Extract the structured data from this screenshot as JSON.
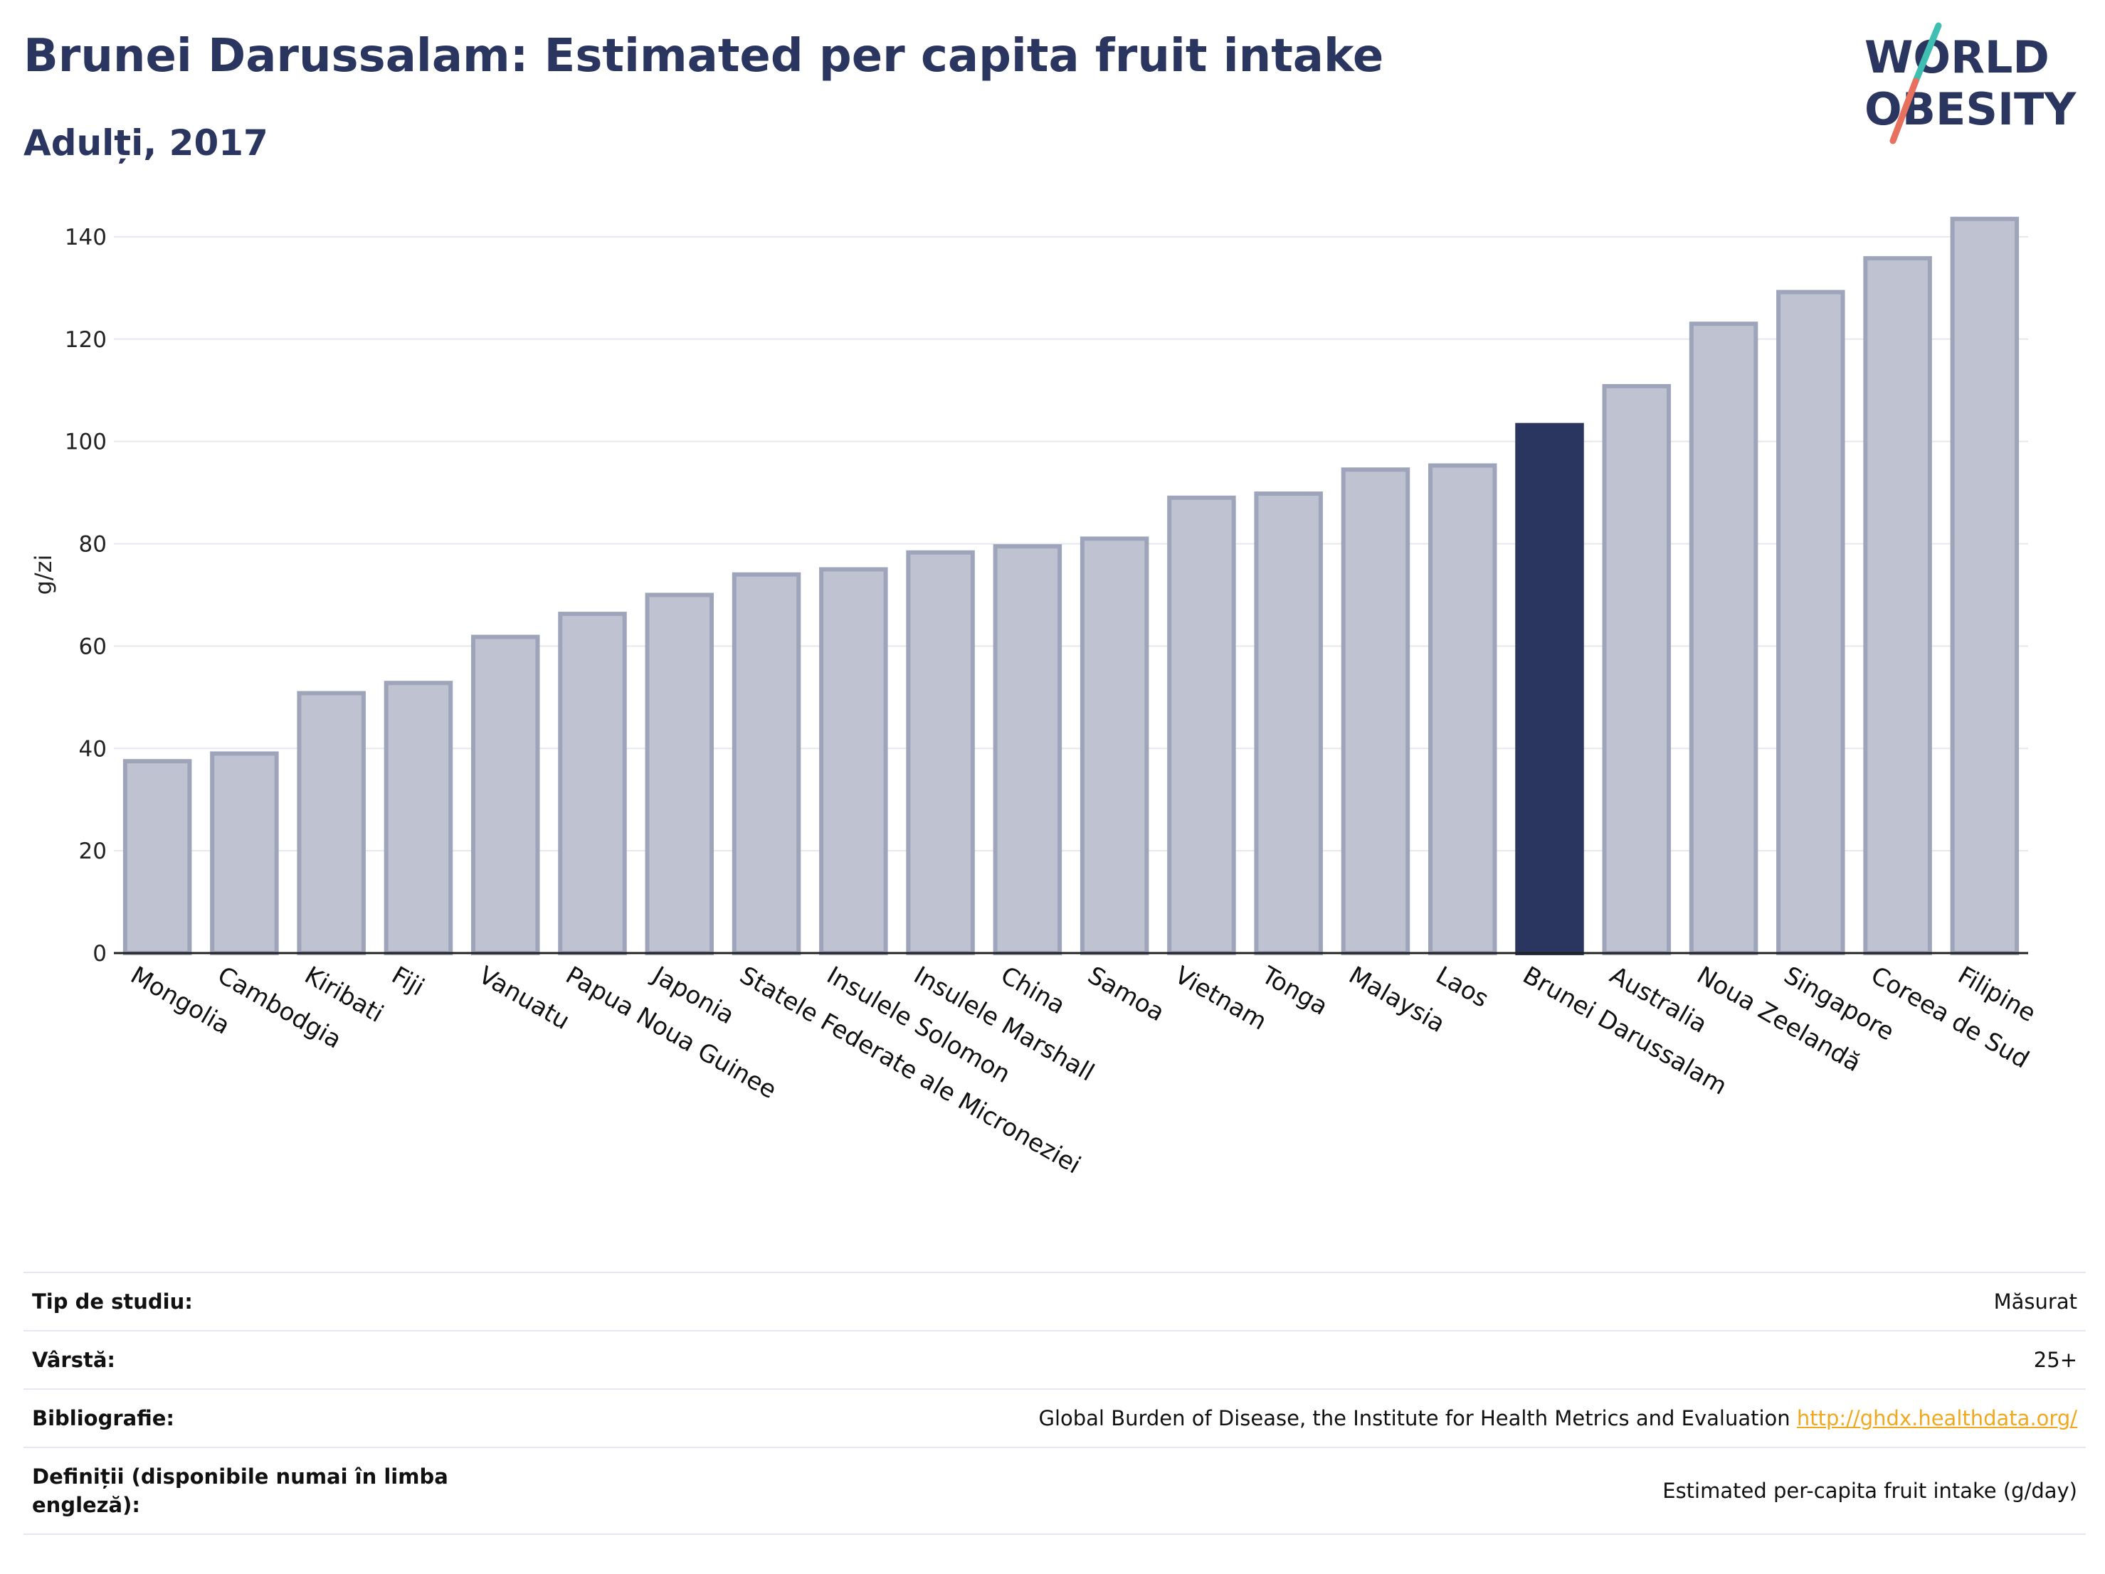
{
  "header": {
    "title": "Brunei Darussalam: Estimated per capita fruit intake",
    "subtitle": "Adulți, 2017"
  },
  "logo": {
    "line1": "WORLD",
    "line2": "OBESITY"
  },
  "colors": {
    "highlight": "#2b3660",
    "bar": "#bfc3d1",
    "bar_border": "#9ea4ba",
    "grid": "#e6e8ef",
    "logo_teal": "#3fbfb1",
    "logo_red": "#e8705e",
    "link": "#f0a81f"
  },
  "chart_data": {
    "type": "bar",
    "ylabel": "g/zi",
    "ylim": [
      0,
      150
    ],
    "yticks": [
      0,
      20,
      40,
      60,
      80,
      100,
      120,
      140
    ],
    "grid": true,
    "highlight": "Brunei Darussalam",
    "categories": [
      "Mongolia",
      "Cambodgia",
      "Kiribati",
      "Fiji",
      "Vanuatu",
      "Papua Noua Guinee",
      "Japonia",
      "Statele Federate ale Microneziei",
      "Insulele Solomon",
      "Insulele Marshall",
      "China",
      "Samoa",
      "Vietnam",
      "Tonga",
      "Malaysia",
      "Laos",
      "Brunei Darussalam",
      "Australia",
      "Noua Zeelandă",
      "Singapore",
      "Coreea de Sud",
      "Filipine"
    ],
    "values": [
      37.5,
      39,
      50.8,
      52.8,
      61.8,
      66.3,
      70,
      74,
      75,
      78.3,
      79.5,
      81,
      89,
      89.8,
      94.5,
      95.3,
      103.2,
      110.8,
      123,
      129.2,
      135.8,
      143.5
    ]
  },
  "info": {
    "rows": [
      {
        "label": "Tip de studiu:",
        "value": "Măsurat"
      },
      {
        "label": "Vârstă:",
        "value": "25+"
      },
      {
        "label": "Bibliografie:",
        "value": "Global Burden of Disease, the Institute for Health Metrics and Evaluation",
        "link": "http://ghdx.healthdata.org/"
      },
      {
        "label": "Definiții (disponibile numai în limba engleză):",
        "value": "Estimated per-capita fruit intake (g/day)"
      }
    ]
  }
}
